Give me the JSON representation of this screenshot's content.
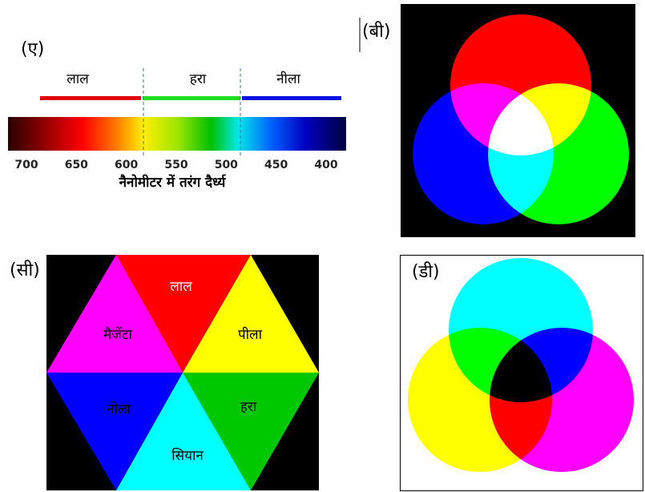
{
  "panel_a": {
    "label": "(ए)",
    "band_labels": [
      "लाल",
      "हरा",
      "नीला"
    ],
    "ticks": [
      700,
      650,
      600,
      550,
      500,
      450,
      400
    ],
    "axis_label": "नैनोमीटर में तरंग दैर्ध्य"
  },
  "panel_b": {
    "label": "(बी)"
  },
  "panel_c": {
    "label": "(सी)",
    "segments": [
      "लाल",
      "पीला",
      "हरा",
      "सियान",
      "नीला",
      "मैजेंटा"
    ]
  },
  "panel_d": {
    "label": "(डी)"
  }
}
